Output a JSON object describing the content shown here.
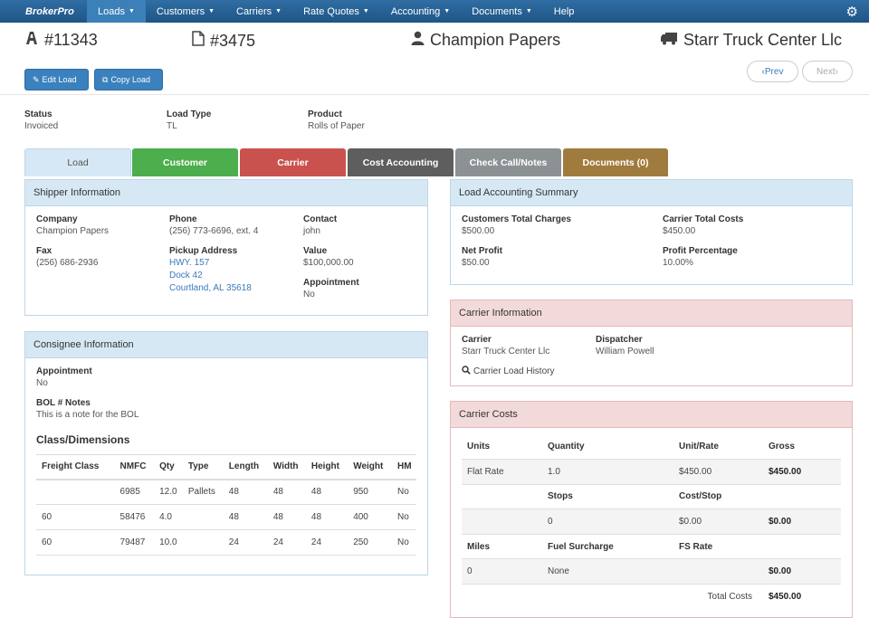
{
  "nav": {
    "logo": "BrokerPro",
    "items": [
      {
        "label": "Loads",
        "caret": "▼"
      },
      {
        "label": "Customers",
        "caret": "▼"
      },
      {
        "label": "Carriers",
        "caret": "▼"
      },
      {
        "label": "Rate Quotes",
        "caret": "▼"
      },
      {
        "label": "Accounting",
        "caret": "▼"
      },
      {
        "label": "Documents",
        "caret": "▼"
      },
      {
        "label": "Help",
        "caret": ""
      }
    ],
    "settings_icon": "gear-icon"
  },
  "header": {
    "load_number": "#11343",
    "bol_number": "#3475",
    "customer": "Champion Papers",
    "carrier": "Starr Truck Center Llc"
  },
  "actions": {
    "edit": "Edit Load",
    "copy": "Copy Load",
    "prev": "‹Prev",
    "next": "Next›"
  },
  "summary": {
    "status_label": "Status",
    "status": "Invoiced",
    "load_type_label": "Load Type",
    "load_type": "TL",
    "product_label": "Product",
    "product": "Rolls of Paper"
  },
  "tabs": [
    {
      "label": "Load",
      "color": "#d6e8f6"
    },
    {
      "label": "Customer",
      "color": "#4cae4c"
    },
    {
      "label": "Carrier",
      "color": "#c9524f"
    },
    {
      "label": "Cost Accounting",
      "color": "#5e5e5e"
    },
    {
      "label": "Check Call/Notes",
      "color": "#8c9194"
    },
    {
      "label": "Documents (0)",
      "color": "#a07b3e"
    }
  ],
  "shipper": {
    "title": "Shipper Information",
    "company_label": "Company",
    "company": "Champion Papers",
    "phone_label": "Phone",
    "phone": "(256) 773-6696, ext. 4",
    "contact_label": "Contact",
    "contact": "john",
    "fax_label": "Fax",
    "fax": "(256) 686-2936",
    "pickup_label": "Pickup Address",
    "address1": "HWY. 157",
    "address2": "Dock 42",
    "address3": "Courtland, AL 35618",
    "value_label": "Value",
    "value": "$100,000.00",
    "appointment_label": "Appointment",
    "appointment": "No"
  },
  "consignee": {
    "title": "Consignee Information",
    "appointment_label": "Appointment",
    "appointment": "No",
    "bol_label": "BOL # Notes",
    "bol_notes": "This is a note for the BOL",
    "class_title": "Class/Dimensions",
    "columns": [
      "Freight Class",
      "NMFC",
      "Qty",
      "Type",
      "Length",
      "Width",
      "Height",
      "Weight",
      "HM"
    ],
    "rows": [
      [
        "",
        "6985",
        "12.0",
        "Pallets",
        "48",
        "48",
        "48",
        "950",
        "No"
      ],
      [
        "60",
        "58476",
        "4.0",
        "",
        "48",
        "48",
        "48",
        "400",
        "No"
      ],
      [
        "60",
        "79487",
        "10.0",
        "",
        "24",
        "24",
        "24",
        "250",
        "No"
      ]
    ]
  },
  "accounting": {
    "title": "Load Accounting Summary",
    "charges_label": "Customers Total Charges",
    "charges": "$500.00",
    "costs_label": "Carrier Total Costs",
    "costs": "$450.00",
    "profit_label": "Net Profit",
    "profit": "$50.00",
    "pct_label": "Profit Percentage",
    "pct": "10.00%"
  },
  "carrier_info": {
    "title": "Carrier Information",
    "carrier_label": "Carrier",
    "carrier": "Starr Truck Center Llc",
    "dispatcher_label": "Dispatcher",
    "dispatcher": "William Powell",
    "history": "Carrier Load History"
  },
  "carrier_costs": {
    "title": "Carrier Costs",
    "rows": [
      {
        "type": "h",
        "cells": [
          "Units",
          "Quantity",
          "Unit/Rate",
          "Gross"
        ]
      },
      {
        "type": "s",
        "cells": [
          "Flat Rate",
          "1.0",
          "$450.00",
          "$450.00"
        ]
      },
      {
        "type": "h",
        "cells": [
          "",
          "Stops",
          "Cost/Stop",
          ""
        ]
      },
      {
        "type": "s",
        "cells": [
          "",
          "0",
          "$0.00",
          "$0.00"
        ]
      },
      {
        "type": "h",
        "cells": [
          "Miles",
          "Fuel Surcharge",
          "FS Rate",
          ""
        ]
      },
      {
        "type": "s",
        "cells": [
          "0",
          "None",
          "",
          "$0.00"
        ]
      },
      {
        "type": "t",
        "cells": [
          "",
          "",
          "Total Costs",
          "$450.00"
        ]
      }
    ]
  }
}
